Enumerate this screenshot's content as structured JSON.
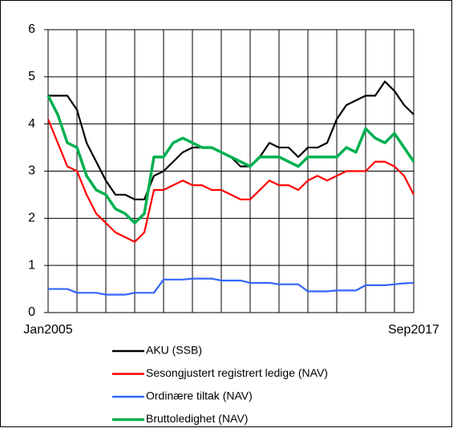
{
  "chart_data": {
    "type": "line",
    "categories": [
      "Jan2005",
      null,
      null,
      null,
      null,
      null,
      null,
      null,
      null,
      null,
      null,
      null,
      null,
      null,
      null,
      null,
      null,
      null,
      null,
      null,
      null,
      null,
      null,
      null,
      null,
      null,
      null,
      null,
      null,
      null,
      null,
      null,
      null,
      null,
      null,
      null,
      null,
      null,
      "Sep2017"
    ],
    "series": [
      {
        "name": "AKU (SSB)",
        "color": "#000000",
        "values": [
          4.6,
          4.6,
          4.6,
          4.3,
          3.6,
          3.2,
          2.8,
          2.5,
          2.5,
          2.4,
          2.4,
          2.9,
          3.0,
          3.2,
          3.4,
          3.5,
          3.5,
          3.5,
          3.4,
          3.3,
          3.1,
          3.1,
          3.3,
          3.6,
          3.5,
          3.5,
          3.3,
          3.5,
          3.5,
          3.6,
          4.1,
          4.4,
          4.5,
          4.6,
          4.6,
          4.9,
          4.7,
          4.4,
          4.2
        ]
      },
      {
        "name": "Sesongjustert registrert ledige (NAV)",
        "color": "#ff0000",
        "values": [
          4.1,
          3.6,
          3.1,
          3.0,
          2.5,
          2.1,
          1.9,
          1.7,
          1.6,
          1.5,
          1.7,
          2.6,
          2.6,
          2.7,
          2.8,
          2.7,
          2.7,
          2.6,
          2.6,
          2.5,
          2.4,
          2.4,
          2.6,
          2.8,
          2.7,
          2.7,
          2.6,
          2.8,
          2.9,
          2.8,
          2.9,
          3.0,
          3.0,
          3.0,
          3.2,
          3.2,
          3.1,
          2.9,
          2.5
        ]
      },
      {
        "name": "Ordinære tiltak  (NAV)",
        "color": "#3366ff",
        "values": [
          0.5,
          0.5,
          0.5,
          0.42,
          0.42,
          0.42,
          0.38,
          0.38,
          0.38,
          0.42,
          0.42,
          0.42,
          0.7,
          0.7,
          0.7,
          0.72,
          0.72,
          0.72,
          0.68,
          0.68,
          0.68,
          0.63,
          0.63,
          0.63,
          0.6,
          0.6,
          0.6,
          0.45,
          0.45,
          0.45,
          0.47,
          0.47,
          0.47,
          0.58,
          0.58,
          0.58,
          0.6,
          0.62,
          0.63
        ]
      },
      {
        "name": "Bruttoledighet (NAV)",
        "color": "#00b050",
        "values": [
          4.6,
          4.2,
          3.6,
          3.5,
          2.9,
          2.6,
          2.5,
          2.2,
          2.1,
          1.9,
          2.1,
          3.3,
          3.3,
          3.6,
          3.7,
          3.6,
          3.5,
          3.5,
          3.4,
          3.3,
          3.2,
          3.1,
          3.3,
          3.3,
          3.3,
          3.2,
          3.1,
          3.3,
          3.3,
          3.3,
          3.3,
          3.5,
          3.4,
          3.9,
          3.7,
          3.6,
          3.8,
          3.5,
          3.2
        ]
      }
    ],
    "ylim": [
      0,
      6
    ],
    "yticks": [
      0,
      1,
      2,
      3,
      4,
      5,
      6
    ],
    "grid": true
  }
}
